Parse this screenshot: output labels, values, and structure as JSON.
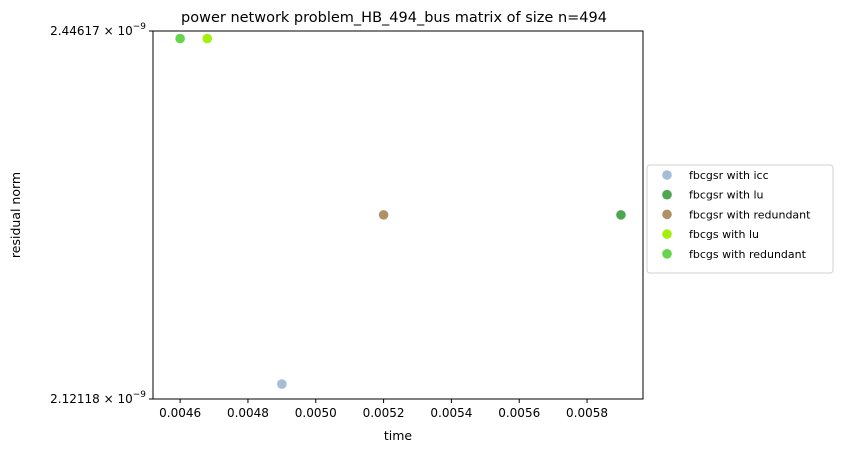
{
  "chart_data": {
    "type": "scatter",
    "title": "power network problem_HB_494_bus matrix of size n=494",
    "xlabel": "time",
    "ylabel": "residual norm",
    "xlim": [
      0.00452,
      0.005965
    ],
    "ylim": [
      2.12118e-09,
      2.44617e-09
    ],
    "yscale": "log",
    "x_ticks": [
      0.0046,
      0.0048,
      0.005,
      0.0052,
      0.0054,
      0.0056,
      0.0058
    ],
    "x_tick_labels": [
      "0.0046",
      "0.0048",
      "0.0050",
      "0.0052",
      "0.0054",
      "0.0056",
      "0.0058"
    ],
    "y_ticks": [
      2.12118e-09,
      2.44617e-09
    ],
    "y_tick_labels": [
      {
        "mantissa": "2.12118",
        "exponent": "−9"
      },
      {
        "mantissa": "2.44617",
        "exponent": "−9"
      }
    ],
    "grid": false,
    "legend_position": "outside-right",
    "series": [
      {
        "name": "fbcgsr with icc",
        "color": "#a6bdd7",
        "points": [
          {
            "x": 0.0049,
            "y": 2.1335e-09
          }
        ]
      },
      {
        "name": "fbcgsr with lu",
        "color": "#4ea64e",
        "points": [
          {
            "x": 0.0059,
            "y": 2.278e-09
          }
        ]
      },
      {
        "name": "fbcgsr with redundant",
        "color": "#b09065",
        "points": [
          {
            "x": 0.0052,
            "y": 2.278e-09
          }
        ]
      },
      {
        "name": "fbcgs with lu",
        "color": "#a3f00f",
        "points": [
          {
            "x": 0.00468,
            "y": 2.439e-09
          }
        ]
      },
      {
        "name": "fbcgs with redundant",
        "color": "#66d44c",
        "points": [
          {
            "x": 0.0046,
            "y": 2.439e-09
          }
        ]
      }
    ]
  }
}
